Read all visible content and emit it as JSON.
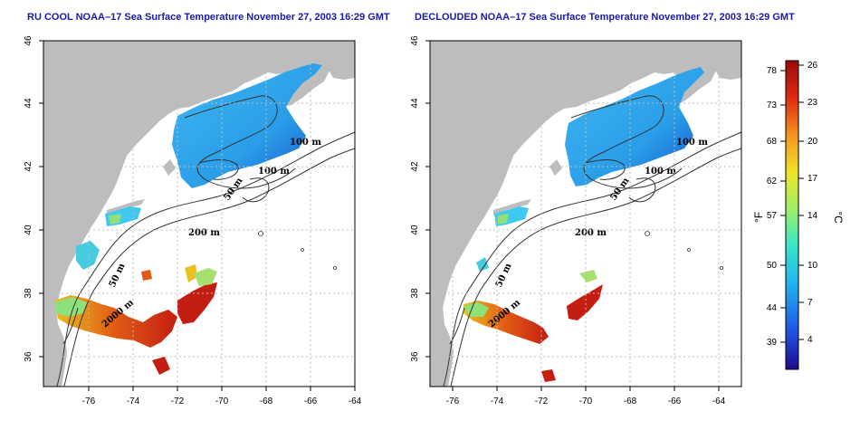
{
  "colors": {
    "title": "#1a1aa6",
    "land": "#bdbdbd",
    "grid": "#bfbfbf",
    "contour": "#333333"
  },
  "maps": [
    {
      "title": "RU COOL NOAA–17 Sea Surface Temperature November 27, 2003 16:29 GMT",
      "x_ticks": [
        "-76",
        "-74",
        "-72",
        "-70",
        "-68",
        "-66",
        "-64"
      ],
      "y_ticks": [
        "46",
        "44",
        "42",
        "40",
        "38",
        "36"
      ],
      "contour_labels": [
        "100 m",
        "100 m",
        "50 m",
        "200 m",
        "50 m",
        "2000 m"
      ]
    },
    {
      "title": "DECLOUDED NOAA–17 Sea Surface Temperature November 27, 2003 16:29 GMT",
      "x_ticks": [
        "-76",
        "-74",
        "-72",
        "-70",
        "-68",
        "-66",
        "-64"
      ],
      "y_ticks": [
        "46",
        "44",
        "42",
        "40",
        "38",
        "36"
      ],
      "contour_labels": [
        "100 m",
        "100 m",
        "50 m",
        "200 m",
        "50 m",
        "2000 m"
      ]
    }
  ],
  "colorbar": {
    "f_label": "°F",
    "c_label": "°C",
    "f_ticks": [
      "78",
      "73",
      "68",
      "62",
      "57",
      "50",
      "44",
      "39"
    ],
    "c_ticks": [
      "26",
      "23",
      "20",
      "17",
      "14",
      "10",
      "7",
      "4"
    ],
    "range_c": [
      1,
      27
    ],
    "stops": [
      "#1e0a8c",
      "#1f52e0",
      "#22b4f0",
      "#38e6c8",
      "#9ef06a",
      "#f2e22a",
      "#f59320",
      "#dd2a12",
      "#9a0a0a"
    ]
  }
}
